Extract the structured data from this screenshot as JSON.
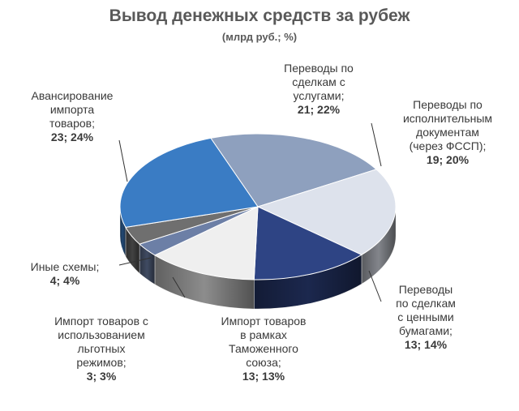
{
  "chart_data": {
    "type": "pie",
    "title": "Вывод денежных средств за рубеж",
    "subtitle": "(млрд руб.; %)",
    "slices": [
      {
        "label": "Переводы по сделкам с услугами",
        "value": 21,
        "percent": 22,
        "color": "#8ea0be"
      },
      {
        "label": "Переводы по исполнительным документам (через ФССП)",
        "value": 19,
        "percent": 20,
        "color": "#dde2ec"
      },
      {
        "label": "Переводы по сделкам с ценными бумагами",
        "value": 13,
        "percent": 14,
        "color": "#2e4484"
      },
      {
        "label": "Импорт товаров в рамках Таможенного союза",
        "value": 13,
        "percent": 13,
        "color": "#efefef"
      },
      {
        "label": "Импорт товаров с использованием льготных режимов",
        "value": 3,
        "percent": 3,
        "color": "#6c7fa6"
      },
      {
        "label": "Иные схемы",
        "value": 4,
        "percent": 4,
        "color": "#6f6f6f"
      },
      {
        "label": "Авансирование импорта товаров",
        "value": 23,
        "percent": 24,
        "color": "#3a7cc4"
      }
    ]
  },
  "labels": [
    {
      "lines": [
        "Переводы по",
        "сделкам с",
        "услугами;"
      ],
      "figures": "21; 22%"
    },
    {
      "lines": [
        "Переводы по",
        "исполнительным",
        "документам",
        "(через ФССП);"
      ],
      "figures": "19; 20%"
    },
    {
      "lines": [
        "Переводы",
        "по сделкам",
        "с ценными",
        "бумагами;"
      ],
      "figures": "13; 14%"
    },
    {
      "lines": [
        "Импорт товаров",
        "в рамках",
        "Таможенного",
        "союза;"
      ],
      "figures": "13; 13%"
    },
    {
      "lines": [
        "Импорт товаров с",
        "использованием",
        "льготных",
        "режимов;"
      ],
      "figures": "3; 3%"
    },
    {
      "lines": [
        "Иные схемы;"
      ],
      "figures": "4; 4%"
    },
    {
      "lines": [
        "Авансирование",
        "импорта",
        "товаров;"
      ],
      "figures": "23; 24%"
    }
  ]
}
